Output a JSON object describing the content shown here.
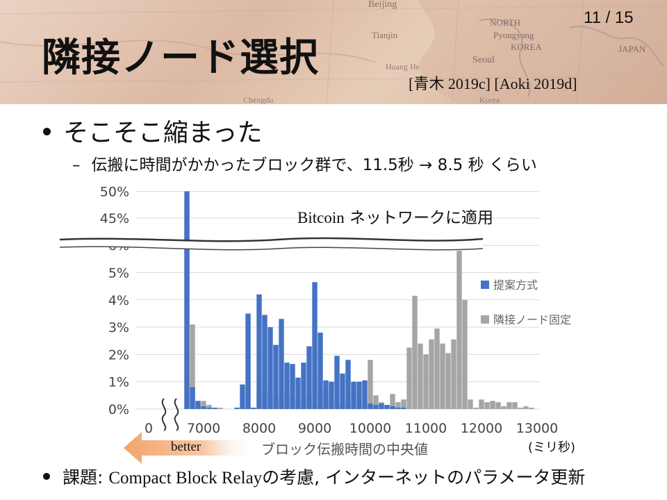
{
  "slide": {
    "title": "隣接ノード選択",
    "page_number": "11 / 15",
    "citation": "[青木 2019c] [Aoki 2019d]",
    "bullet1": "そこそこ縮まった",
    "sub_bullet_dash": "–",
    "sub_bullet": "伝搬に時間がかかったブロック群で、11.5秒 → 8.5 秒 くらい",
    "bullet2_prefix": "課題: ",
    "bullet2_serif": "Compact Block Relay",
    "bullet2_mid": "の考慮, インターネットのパラメータ更新",
    "overlay_serif": "Bitcoin",
    "overlay_rest": " ネットワークに適用",
    "better_label": "better",
    "xaxis_title": "ブロック伝搬時間の中央値",
    "unit_label": "(ミリ秒)",
    "map_labels": [
      "Beijing",
      "Tianjin",
      "NORTH",
      "Pyongyang",
      "KOREA",
      "Seoul",
      "JAPAN",
      "Huang He",
      "Chengdu",
      "Korea"
    ]
  },
  "chart_data": {
    "type": "bar",
    "x_unit": "ms",
    "bin_width_ms": 100,
    "ytick_labels_bottom": [
      "0%",
      "1%",
      "2%",
      "3%",
      "4%",
      "5%",
      "6%"
    ],
    "ytick_labels_top": [
      "45%",
      "50%"
    ],
    "xtick_labels": [
      "0",
      "7000",
      "8000",
      "9000",
      "10000",
      "11000",
      "12000",
      "13000"
    ],
    "ylim_bottom": [
      0,
      6
    ],
    "ylim_top": [
      45,
      50
    ],
    "axis_break": "y between 6% and 45%; x between 0 and 6600",
    "grid": true,
    "legend_placement": "right",
    "colors": {
      "proposed": "#4472c4",
      "fixed": "#a5a5a5"
    },
    "series": [
      {
        "name": "提案方式",
        "x": [
          6700,
          6800,
          6900,
          7000,
          7100,
          7200,
          7300,
          7400,
          7500,
          7600,
          7700,
          7800,
          7900,
          8000,
          8100,
          8200,
          8300,
          8400,
          8500,
          8600,
          8700,
          8800,
          8900,
          9000,
          9100,
          9200,
          9300,
          9400,
          9500,
          9600,
          9700,
          9800,
          9900,
          10000,
          10100,
          10200,
          10300,
          10400,
          10500,
          10600
        ],
        "values": [
          50.0,
          0.8,
          0.3,
          0.1,
          0.05,
          0.05,
          0.0,
          0.0,
          0.0,
          0.05,
          0.9,
          3.5,
          0.05,
          4.2,
          3.45,
          3.0,
          2.35,
          3.3,
          1.7,
          1.65,
          1.15,
          1.7,
          2.3,
          4.65,
          2.8,
          1.05,
          1.0,
          1.95,
          1.3,
          1.8,
          1.0,
          1.0,
          1.05,
          0.2,
          0.15,
          0.2,
          0.15,
          0.1,
          0.05,
          0.05
        ]
      },
      {
        "name": "隣接ノード固定",
        "x": [
          6700,
          6800,
          6900,
          7000,
          7100,
          7200,
          7300,
          7400,
          7500,
          7600,
          7700,
          7800,
          7900,
          8000,
          8100,
          8200,
          8300,
          8400,
          8500,
          8600,
          8700,
          8800,
          8900,
          9000,
          9100,
          9200,
          9300,
          9400,
          9500,
          9600,
          9700,
          9800,
          9900,
          10000,
          10100,
          10200,
          10300,
          10400,
          10500,
          10600,
          10700,
          10800,
          10900,
          11000,
          11100,
          11200,
          11300,
          11400,
          11500,
          11600,
          11700,
          11800,
          11900,
          12000,
          12100,
          12200,
          12300,
          12400,
          12500,
          12600,
          12700,
          12800,
          12900
        ],
        "values": [
          48.0,
          3.1,
          0.15,
          0.3,
          0.15,
          0.05,
          0.05,
          0.0,
          0.0,
          0.0,
          0.05,
          0.05,
          0.05,
          0.6,
          0.75,
          0.55,
          0.35,
          0.4,
          0.6,
          0.45,
          0.3,
          0.35,
          0.45,
          0.15,
          0.7,
          0.75,
          0.4,
          0.2,
          0.15,
          0.25,
          0.75,
          0.25,
          0.3,
          1.8,
          0.5,
          0.25,
          0.15,
          0.55,
          0.25,
          0.35,
          2.25,
          4.15,
          2.4,
          2.0,
          2.55,
          2.95,
          2.4,
          2.05,
          2.55,
          5.8,
          4.0,
          0.35,
          0.05,
          0.35,
          0.25,
          0.3,
          0.25,
          0.1,
          0.25,
          0.25,
          0.05,
          0.1,
          0.05
        ]
      }
    ]
  }
}
